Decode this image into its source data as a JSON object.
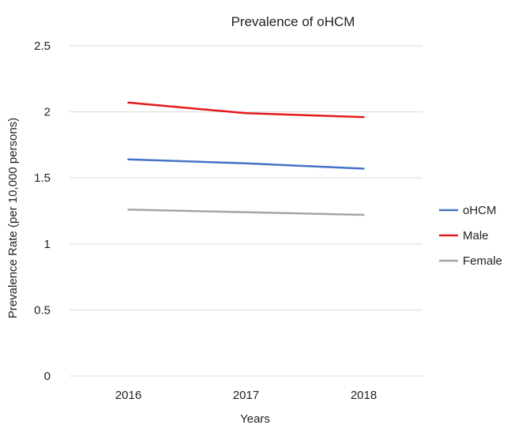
{
  "chart_data": {
    "type": "line",
    "title": "Prevalence of oHCM",
    "xlabel": "Years",
    "ylabel": "Prevalence Rate (per 10,000 persons)",
    "categories": [
      "2016",
      "2017",
      "2018"
    ],
    "ylim": [
      0,
      2.5
    ],
    "yticks": [
      "0",
      "0.5",
      "1",
      "1.5",
      "2",
      "2.5"
    ],
    "grid": true,
    "legend_position": "right",
    "series": [
      {
        "name": "oHCM",
        "color": "#4472C4",
        "values": [
          1.64,
          1.61,
          1.57
        ]
      },
      {
        "name": "Male",
        "color": "#E3191B",
        "values": [
          2.07,
          1.99,
          1.96
        ]
      },
      {
        "name": "Female",
        "color": "#A5A5A5",
        "values": [
          1.26,
          1.24,
          1.22
        ]
      }
    ]
  }
}
